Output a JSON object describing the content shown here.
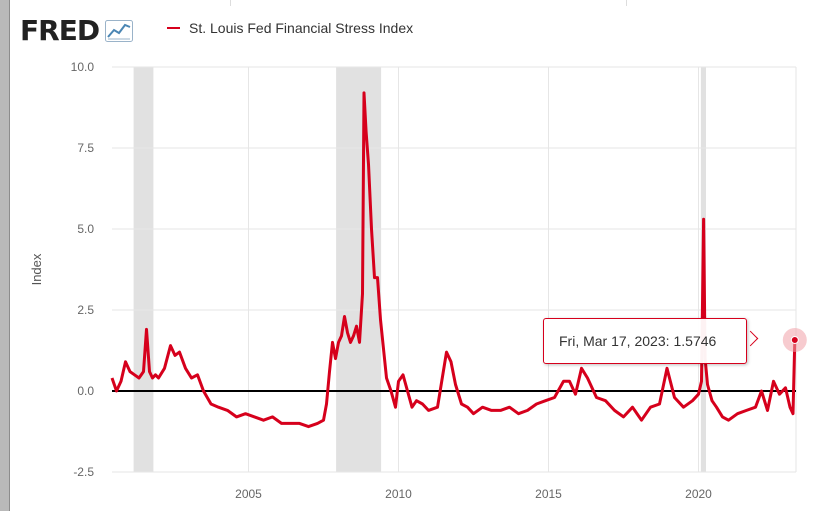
{
  "header": {
    "logo_text": "FRED",
    "logo_icon": "chart-line-icon"
  },
  "legend": {
    "series_label": "St. Louis Fed Financial Stress Index",
    "color": "#d6001c"
  },
  "tooltip": {
    "date": "Fri, Mar 17, 2023:",
    "value": "1.5746"
  },
  "chart_data": {
    "type": "line",
    "title": "",
    "xlabel": "",
    "ylabel": "Index",
    "xlim": [
      2000.45,
      2023.25
    ],
    "ylim": [
      -2.5,
      10.0
    ],
    "y_ticks": [
      "10.0",
      "7.5",
      "5.0",
      "2.5",
      "0.0",
      "-2.5"
    ],
    "x_ticks": [
      "2005",
      "2010",
      "2015",
      "2020"
    ],
    "grid": true,
    "legend_position": "top-left",
    "zero_line": true,
    "recessions": [
      [
        2001.17,
        2001.83
      ],
      [
        2007.92,
        2009.42
      ],
      [
        2020.08,
        2020.25
      ]
    ],
    "series": [
      {
        "name": "St. Louis Fed Financial Stress Index",
        "color": "#d6001c",
        "x": [
          2000.45,
          2000.6,
          2000.75,
          2000.9,
          2001.05,
          2001.2,
          2001.35,
          2001.5,
          2001.6,
          2001.7,
          2001.8,
          2001.9,
          2002.0,
          2002.2,
          2002.4,
          2002.55,
          2002.7,
          2002.9,
          2003.1,
          2003.3,
          2003.5,
          2003.75,
          2004.0,
          2004.3,
          2004.6,
          2004.9,
          2005.2,
          2005.5,
          2005.8,
          2006.1,
          2006.4,
          2006.7,
          2007.0,
          2007.3,
          2007.5,
          2007.6,
          2007.7,
          2007.8,
          2007.9,
          2008.0,
          2008.1,
          2008.2,
          2008.3,
          2008.4,
          2008.5,
          2008.6,
          2008.7,
          2008.8,
          2008.85,
          2008.92,
          2009.0,
          2009.1,
          2009.2,
          2009.3,
          2009.4,
          2009.5,
          2009.6,
          2009.75,
          2009.9,
          2010.0,
          2010.15,
          2010.3,
          2010.45,
          2010.6,
          2010.8,
          2011.0,
          2011.3,
          2011.6,
          2011.75,
          2011.9,
          2012.1,
          2012.3,
          2012.5,
          2012.8,
          2013.1,
          2013.4,
          2013.7,
          2014.0,
          2014.3,
          2014.6,
          2014.9,
          2015.2,
          2015.5,
          2015.7,
          2015.9,
          2016.1,
          2016.3,
          2016.6,
          2016.9,
          2017.2,
          2017.5,
          2017.8,
          2018.1,
          2018.4,
          2018.7,
          2018.95,
          2019.2,
          2019.5,
          2019.8,
          2020.0,
          2020.1,
          2020.17,
          2020.22,
          2020.3,
          2020.45,
          2020.6,
          2020.8,
          2021.0,
          2021.3,
          2021.6,
          2021.9,
          2022.1,
          2022.3,
          2022.5,
          2022.7,
          2022.9,
          2023.05,
          2023.15,
          2023.21
        ],
        "values": [
          0.4,
          0.0,
          0.3,
          0.9,
          0.6,
          0.5,
          0.4,
          0.6,
          1.9,
          0.6,
          0.4,
          0.5,
          0.4,
          0.7,
          1.4,
          1.1,
          1.2,
          0.7,
          0.4,
          0.5,
          0.0,
          -0.4,
          -0.5,
          -0.6,
          -0.8,
          -0.7,
          -0.8,
          -0.9,
          -0.8,
          -1.0,
          -1.0,
          -1.0,
          -1.1,
          -1.0,
          -0.9,
          -0.4,
          0.6,
          1.5,
          1.0,
          1.5,
          1.7,
          2.3,
          1.8,
          1.5,
          1.7,
          2.0,
          1.5,
          3.0,
          9.2,
          8.0,
          7.0,
          5.0,
          3.5,
          3.5,
          2.2,
          1.3,
          0.4,
          0.0,
          -0.5,
          0.3,
          0.5,
          0.0,
          -0.5,
          -0.3,
          -0.4,
          -0.6,
          -0.5,
          1.2,
          0.9,
          0.2,
          -0.4,
          -0.5,
          -0.7,
          -0.5,
          -0.6,
          -0.6,
          -0.5,
          -0.7,
          -0.6,
          -0.4,
          -0.3,
          -0.2,
          0.3,
          0.3,
          -0.1,
          0.7,
          0.4,
          -0.2,
          -0.3,
          -0.6,
          -0.8,
          -0.5,
          -0.9,
          -0.5,
          -0.4,
          0.7,
          -0.2,
          -0.5,
          -0.3,
          -0.1,
          0.3,
          5.3,
          1.0,
          0.2,
          -0.3,
          -0.5,
          -0.8,
          -0.9,
          -0.7,
          -0.6,
          -0.5,
          0.0,
          -0.6,
          0.3,
          -0.1,
          0.1,
          -0.5,
          -0.7,
          1.5746
        ]
      }
    ]
  }
}
